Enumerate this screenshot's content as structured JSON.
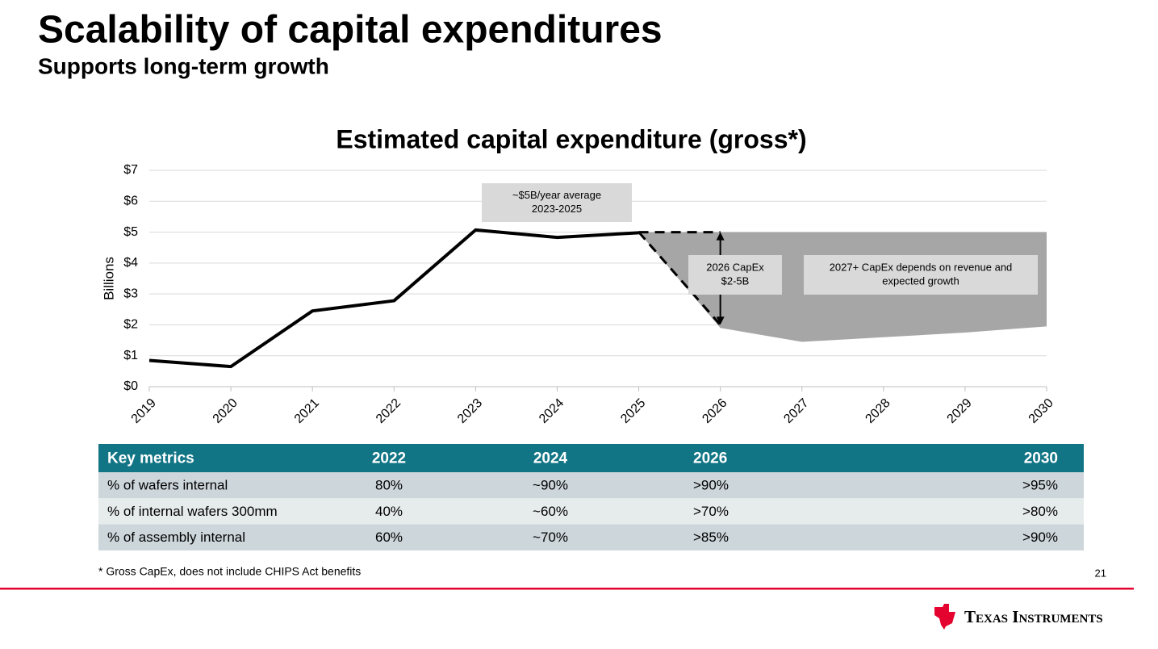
{
  "slide": {
    "title": "Scalability of capital expenditures",
    "subtitle": "Supports long-term growth",
    "footnote": "* Gross CapEx, does not include CHIPS Act benefits",
    "page_number": "21",
    "logo": "Texas Instruments"
  },
  "chart_data": {
    "type": "line",
    "title": "Estimated capital expenditure (gross*)",
    "y_label": "Billions",
    "categories": [
      "2019",
      "2020",
      "2021",
      "2022",
      "2023",
      "2024",
      "2025",
      "2026",
      "2027",
      "2028",
      "2029",
      "2030"
    ],
    "series": [
      {
        "color": "#000000",
        "values": [
          0.85,
          0.65,
          2.45,
          2.78,
          5.07,
          4.83,
          4.98,
          null,
          null,
          null,
          null,
          null
        ]
      }
    ],
    "dashed": [
      {
        "color": "#000000",
        "values": [
          null,
          null,
          null,
          null,
          null,
          null,
          5,
          5,
          null,
          null,
          null,
          null
        ]
      },
      {
        "color": "#000000",
        "values": [
          null,
          null,
          null,
          null,
          null,
          null,
          5,
          2,
          null,
          null,
          null,
          null
        ]
      }
    ],
    "range": {
      "color": "#a6a6a6",
      "upper": [
        null,
        null,
        null,
        null,
        null,
        null,
        5,
        5,
        5,
        5,
        5,
        5
      ],
      "lower": [
        null,
        null,
        null,
        null,
        null,
        null,
        5,
        1.9,
        1.45,
        1.6,
        1.75,
        1.95
      ]
    },
    "annotations": [
      {
        "lines": [
          "~$5B/year average",
          "2023-2025"
        ]
      },
      {
        "lines": [
          "2026 CapEx",
          "$2-5B"
        ]
      },
      {
        "lines": [
          "2027+ CapEx depends on revenue and",
          "expected growth"
        ]
      }
    ],
    "ylim": [
      0,
      7
    ],
    "yticks": [
      {
        "value": 0,
        "label": "$0"
      },
      {
        "value": 1,
        "label": "$1"
      },
      {
        "value": 2,
        "label": "$2"
      },
      {
        "value": 3,
        "label": "$3"
      },
      {
        "value": 4,
        "label": "$4"
      },
      {
        "value": 5,
        "label": "$5"
      },
      {
        "value": 6,
        "label": "$6"
      },
      {
        "value": 7,
        "label": "$7"
      }
    ],
    "grid": true
  },
  "table": {
    "header": [
      "Key metrics",
      "2022",
      "2024",
      "2026",
      "2030"
    ],
    "rows": [
      [
        "% of wafers internal",
        "80%",
        "~90%",
        ">90%",
        ">95%"
      ],
      [
        "% of internal wafers 300mm",
        "40%",
        "~60%",
        ">70%",
        ">80%"
      ],
      [
        "% of assembly internal",
        "60%",
        "~70%",
        ">85%",
        ">90%"
      ]
    ]
  }
}
